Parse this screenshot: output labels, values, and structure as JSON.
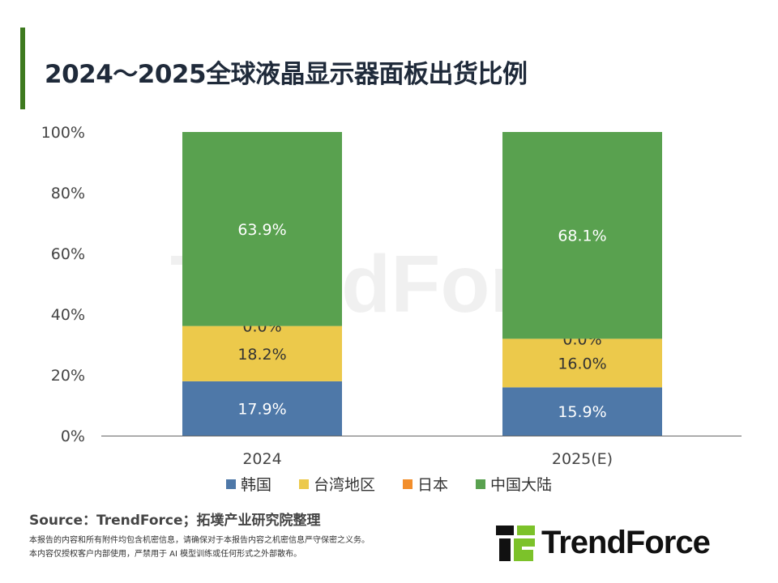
{
  "title": "2024～2025全球液晶显示器面板出货比例",
  "colors": {
    "accent": "#3e7a1f",
    "korea": "#4e78a8",
    "taiwan": "#ecc94b",
    "japan": "#f28e2b",
    "china": "#59a14f"
  },
  "chart_data": {
    "type": "bar",
    "stacked": true,
    "categories": [
      "2024",
      "2025(E)"
    ],
    "series": [
      {
        "name": "韩国",
        "values": [
          17.9,
          15.9
        ],
        "labels": [
          "17.9%",
          "15.9%"
        ],
        "color": "#4e78a8"
      },
      {
        "name": "台湾地区",
        "values": [
          18.2,
          16.0
        ],
        "labels": [
          "18.2%",
          "16.0%"
        ],
        "color": "#ecc94b"
      },
      {
        "name": "日本",
        "values": [
          0.0,
          0.0
        ],
        "labels": [
          "0.0%",
          "0.0%"
        ],
        "color": "#f28e2b"
      },
      {
        "name": "中国大陆",
        "values": [
          63.9,
          68.1
        ],
        "labels": [
          "63.9%",
          "68.1%"
        ],
        "color": "#59a14f"
      }
    ],
    "yticks": [
      "0%",
      "20%",
      "40%",
      "60%",
      "80%",
      "100%"
    ],
    "ylim": [
      0,
      100
    ],
    "grid": false,
    "legend": "bottom"
  },
  "watermark": "TrendForce",
  "source": "Source：TrendForce；拓墣产业研究院整理",
  "disclaimer": [
    "本报告的内容和所有附件均包含机密信息，请确保对于本报告内容之机密信息严守保密之义务。",
    "本内容仅授权客户内部使用，严禁用于 AI 模型训练或任何形式之外部散布。"
  ],
  "logo": "TrendForce"
}
